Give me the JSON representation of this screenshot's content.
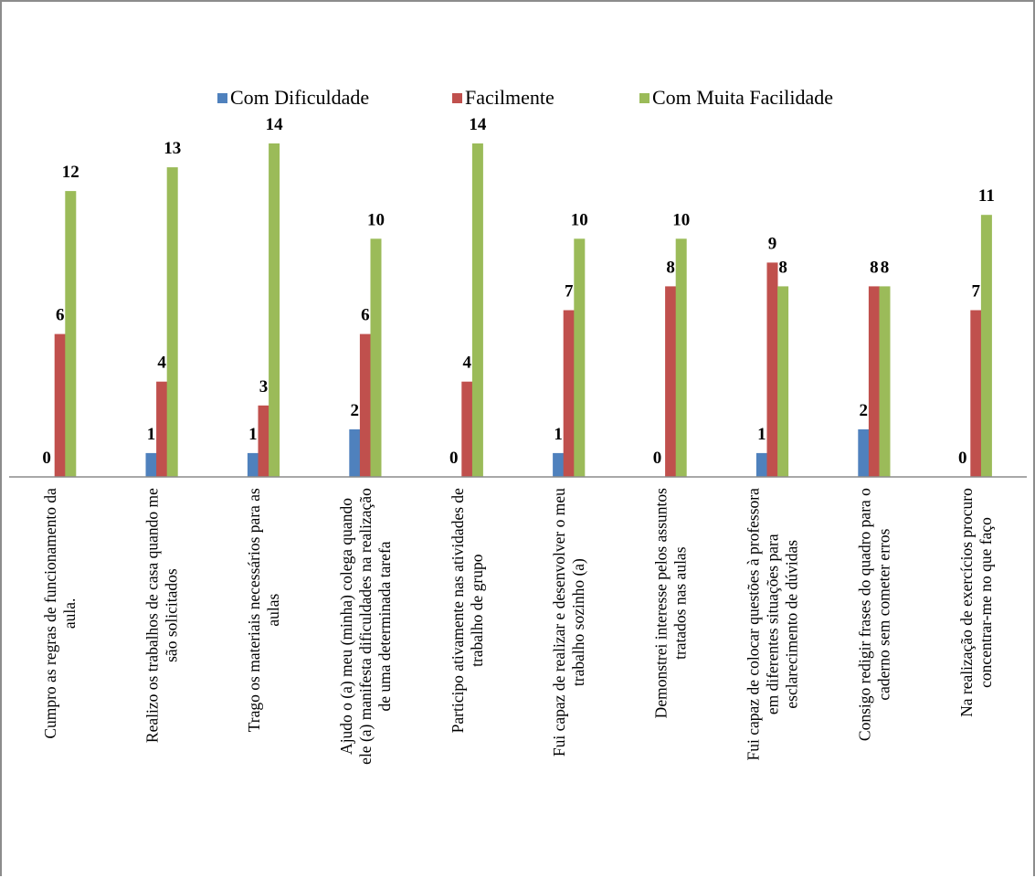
{
  "chart_data": {
    "type": "bar",
    "title": "",
    "xlabel": "",
    "ylabel": "",
    "ylim": [
      0,
      14
    ],
    "grid": false,
    "legend_position": "top",
    "categories": [
      [
        "Cumpro as regras de funcionamento da",
        "aula."
      ],
      [
        "Realizo os trabalhos de casa quando me",
        "são solicitados"
      ],
      [
        "Trago os materiais necessários para as",
        "aulas"
      ],
      [
        "Ajudo o (a) meu (minha) colega quando",
        "ele (a) manifesta dificuldades na realização",
        "de uma determinada tarefa"
      ],
      [
        "Participo ativamente nas atividades de",
        "trabalho de grupo"
      ],
      [
        "Fui capaz de realizar e desenvolver o meu",
        "trabalho sozinho (a)"
      ],
      [
        "Demonstrei interesse pelos assuntos",
        "tratados nas aulas"
      ],
      [
        "Fui capaz de colocar questões à professora",
        "em diferentes situações para",
        "esclarecimento de dúvidas"
      ],
      [
        "Consigo redigir frases do quadro para o",
        "caderno sem cometer erros"
      ],
      [
        "Na realização de exercícios procuro",
        "concentrar-me no que faço"
      ]
    ],
    "series": [
      {
        "name": "Com Dificuldade",
        "color": "#4f81bd",
        "values": [
          0,
          1,
          1,
          2,
          0,
          1,
          0,
          1,
          2,
          0
        ]
      },
      {
        "name": "Facilmente",
        "color": "#c0504d",
        "values": [
          6,
          4,
          3,
          6,
          4,
          7,
          8,
          9,
          8,
          7
        ]
      },
      {
        "name": "Com Muita Facilidade",
        "color": "#9bbb59",
        "values": [
          12,
          13,
          14,
          10,
          14,
          10,
          10,
          8,
          8,
          11
        ]
      }
    ]
  }
}
